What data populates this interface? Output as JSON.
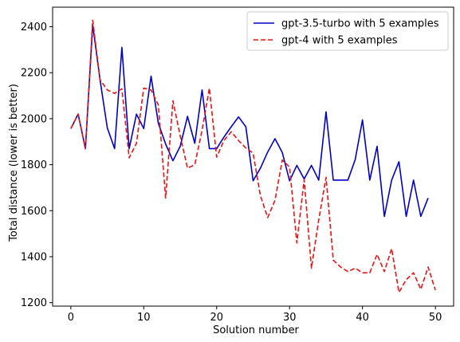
{
  "chart_data": {
    "type": "line",
    "title": "",
    "xlabel": "Solution number",
    "ylabel": "Total distance (lower is better)",
    "xlim": [
      -2.5,
      52.5
    ],
    "ylim": [
      1185,
      2485
    ],
    "xticks": [
      0,
      10,
      20,
      30,
      40,
      50
    ],
    "yticks": [
      1200,
      1400,
      1600,
      1800,
      2000,
      2200,
      2400
    ],
    "grid": false,
    "legend_position": "upper-right",
    "series": [
      {
        "name": "gpt-3.5-turbo with 5 examples",
        "color": "#0000cc",
        "style": "solid",
        "x": [
          0,
          1,
          2,
          3,
          4,
          5,
          6,
          7,
          8,
          9,
          10,
          11,
          12,
          13,
          14,
          15,
          16,
          17,
          18,
          19,
          20,
          21,
          22,
          23,
          24,
          25,
          26,
          27,
          28,
          29,
          30,
          31,
          32,
          33,
          34,
          35,
          36,
          37,
          38,
          39,
          40,
          41,
          42,
          43,
          44,
          45,
          46,
          47,
          48,
          49
        ],
        "values": [
          1957,
          2020,
          1870,
          2408,
          2170,
          1960,
          1870,
          2310,
          1870,
          2020,
          1957,
          2185,
          1980,
          1890,
          1817,
          1880,
          2010,
          1893,
          2125,
          1870,
          1870,
          1920,
          1965,
          2008,
          1965,
          1730,
          1785,
          1855,
          1913,
          1853,
          1730,
          1797,
          1738,
          1797,
          1733,
          2030,
          1733,
          1733,
          1733,
          1822,
          1995,
          1733,
          1880,
          1575,
          1733,
          1813,
          1575,
          1733,
          1575,
          1655
        ]
      },
      {
        "name": "gpt-4 with 5 examples",
        "color": "#ee1111",
        "style": "dashed",
        "x": [
          0,
          1,
          2,
          3,
          4,
          5,
          6,
          7,
          8,
          9,
          10,
          11,
          12,
          13,
          14,
          15,
          16,
          17,
          18,
          19,
          20,
          21,
          22,
          23,
          24,
          25,
          26,
          27,
          28,
          29,
          30,
          31,
          32,
          33,
          34,
          35,
          36,
          37,
          38,
          39,
          40,
          41,
          42,
          43,
          44,
          45,
          46,
          47,
          48,
          49,
          50
        ],
        "values": [
          1957,
          2020,
          1870,
          2428,
          2170,
          2125,
          2110,
          2130,
          1830,
          1893,
          2133,
          2125,
          2060,
          1655,
          2078,
          1925,
          1785,
          1800,
          1950,
          2133,
          1833,
          1905,
          1943,
          1905,
          1873,
          1850,
          1665,
          1570,
          1645,
          1820,
          1790,
          1460,
          1735,
          1350,
          1560,
          1745,
          1385,
          1355,
          1335,
          1350,
          1330,
          1330,
          1410,
          1335,
          1435,
          1245,
          1300,
          1330,
          1258,
          1355,
          1255
        ]
      }
    ]
  }
}
